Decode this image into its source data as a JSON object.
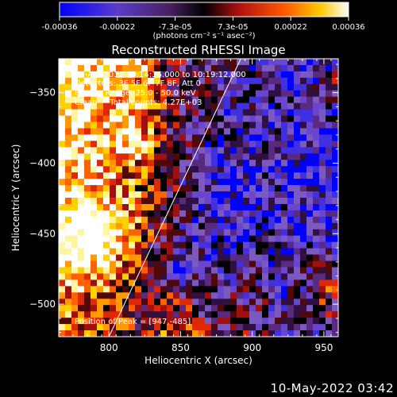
{
  "colors": {
    "background": "#000000",
    "text": "#ffffff",
    "colormap": [
      "#0000ff",
      "#7a4dd6",
      "#5a2a7a",
      "#000000",
      "#c01010",
      "#ff6a00",
      "#ffd000",
      "#ffffff"
    ]
  },
  "colorbar": {
    "tick_labels": [
      "-0.00036",
      "-0.00022",
      "-7.3e-05",
      "7.3e-05",
      "0.00022",
      "0.00036"
    ],
    "unit_label": "(photons cm⁻² s⁻¹ asec⁻²)"
  },
  "chart_data": {
    "type": "heatmap",
    "title": "Reconstructed RHESSI Image",
    "xlabel": "Heliocentric X (arcsec)",
    "ylabel": "Heliocentric Y (arcsec)",
    "xlim": [
      765,
      960
    ],
    "ylim": [
      -523,
      -326
    ],
    "xticks": [
      800,
      850,
      900,
      950
    ],
    "yticks": [
      -350,
      -400,
      -450,
      -500
    ],
    "xtick_labels": [
      "800",
      "850",
      "900",
      "950"
    ],
    "ytick_labels": [
      "−350",
      "−400",
      "−450",
      "−500"
    ],
    "color_range": [
      -0.00036,
      0.00036
    ],
    "annotations": [
      "25-Apr-2012 10:14:36.000 to 10:19:12.000",
      "Detectors: 3F 5F 6F 7F 8F, Att 0",
      "Energy Range: 25.0 - 50.0 keV",
      "Clean     Total counts: 4.27E+03"
    ],
    "peak_label": "Position of Peak = [947,-485]",
    "peak": [
      947,
      -485
    ],
    "limb_line": [
      [
        800,
        -523
      ],
      [
        892,
        -326
      ]
    ]
  },
  "footer_timestamp": "10-May-2022 03:42"
}
